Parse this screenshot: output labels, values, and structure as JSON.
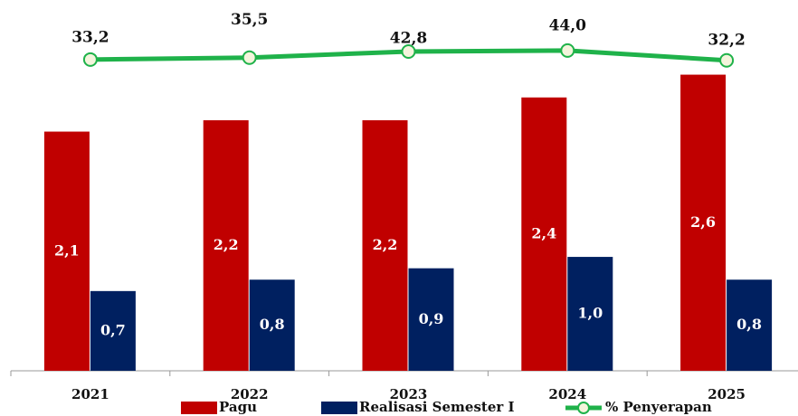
{
  "chart_data": {
    "type": "bar-line",
    "categories": [
      "2021",
      "2022",
      "2023",
      "2024",
      "2025"
    ],
    "series": [
      {
        "name": "Pagu",
        "color": "#c00000",
        "values": [
          2.1,
          2.2,
          2.2,
          2.4,
          2.6
        ],
        "value_labels": [
          "2,1",
          "2,2",
          "2,2",
          "2,4",
          "2,6"
        ]
      },
      {
        "name": "Realisasi Semester I",
        "color": "#002060",
        "values": [
          0.7,
          0.8,
          0.9,
          1.0,
          0.8
        ],
        "value_labels": [
          "0,7",
          "0,8",
          "0,9",
          "1,0",
          "0,8"
        ]
      },
      {
        "name": "% Penyerapan",
        "color": "#1fb24a",
        "axis": "y2",
        "values": [
          33.2,
          35.5,
          42.8,
          44.0,
          32.2
        ],
        "value_labels": [
          "33,2",
          "35,5",
          "42,8",
          "44,0",
          "32,2"
        ]
      }
    ],
    "ylim": [
      0,
      3.2
    ],
    "y2lim": [
      -340,
      97
    ]
  }
}
